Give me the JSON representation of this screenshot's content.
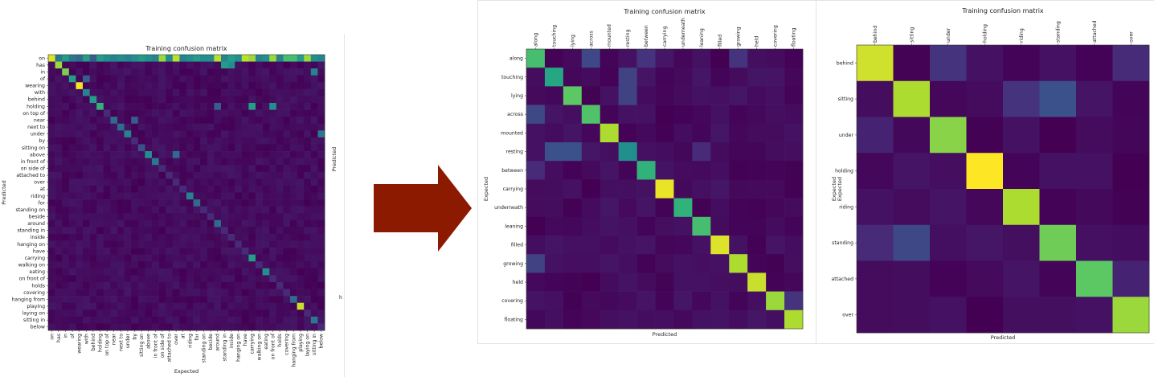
{
  "colors": {
    "arrow": "#8b1a00",
    "colormap": "viridis"
  },
  "chart_data": [
    {
      "type": "heatmap",
      "title": "Training confusion matrix",
      "xlabel": "Expected",
      "ylabel": "Predicted",
      "side_label": "Predicted",
      "edge_text": "h",
      "categories": [
        "on",
        "has",
        "in",
        "of",
        "wearing",
        "with",
        "behind",
        "holding",
        "on top of",
        "near",
        "next to",
        "under",
        "by",
        "sitting on",
        "above",
        "in front of",
        "on side of",
        "attached to",
        "over",
        "at",
        "riding",
        "for",
        "standing on",
        "beside",
        "around",
        "standing in",
        "inside",
        "hanging on",
        "have",
        "carrying",
        "walking on",
        "eating",
        "on front of",
        "holds",
        "covering",
        "hanging from",
        "playing",
        "laying on",
        "sitting in",
        "below"
      ],
      "diagonal": [
        0.95,
        0.85,
        0.8,
        0.55,
        0.98,
        0.45,
        0.55,
        0.65,
        0.12,
        0.35,
        0.35,
        0.45,
        0.12,
        0.25,
        0.5,
        0.4,
        0.12,
        0.12,
        0.12,
        0.12,
        0.45,
        0.35,
        0.12,
        0.12,
        0.35,
        0.12,
        0.12,
        0.12,
        0.12,
        0.55,
        0.12,
        0.5,
        0.12,
        0.12,
        0.12,
        0.35,
        0.92,
        0.12,
        0.4,
        0.12
      ],
      "top_row": [
        0.95,
        0.4,
        0.55,
        0.4,
        0.35,
        0.55,
        0.3,
        0.55,
        0.5,
        0.45,
        0.5,
        0.45,
        0.5,
        0.55,
        0.5,
        0.45,
        0.85,
        0.5,
        0.9,
        0.45,
        0.5,
        0.55,
        0.5,
        0.5,
        0.9,
        0.45,
        0.55,
        0.5,
        0.9,
        0.85,
        0.45,
        0.5,
        0.85,
        0.45,
        0.7,
        0.7,
        0.55,
        0.85,
        0.5,
        0.45
      ],
      "off_diagonal": [
        {
          "row": 7,
          "col": 29,
          "value": 0.55
        },
        {
          "row": 7,
          "col": 32,
          "value": 0.5
        },
        {
          "row": 7,
          "col": 24,
          "value": 0.3
        },
        {
          "row": 1,
          "col": 25,
          "value": 0.55
        },
        {
          "row": 1,
          "col": 26,
          "value": 0.5
        },
        {
          "row": 2,
          "col": 38,
          "value": 0.45
        },
        {
          "row": 14,
          "col": 18,
          "value": 0.35
        },
        {
          "row": 9,
          "col": 12,
          "value": 0.3
        },
        {
          "row": 11,
          "col": 39,
          "value": 0.4
        },
        {
          "row": 29,
          "col": 29,
          "value": 0.55
        },
        {
          "row": 3,
          "col": 5,
          "value": 0.3
        }
      ]
    },
    {
      "type": "heatmap",
      "title": "Training confusion matrix",
      "xlabel": "Predicted",
      "ylabel": "Expected",
      "categories": [
        "along",
        "touching",
        "lying",
        "across",
        "mounted",
        "resting",
        "between",
        "carrying",
        "underneath",
        "leaning",
        "filled",
        "growing",
        "held",
        "covering",
        "floating"
      ],
      "diagonal": [
        0.7,
        0.6,
        0.75,
        0.72,
        0.88,
        0.5,
        0.65,
        0.97,
        0.65,
        0.7,
        0.95,
        0.88,
        0.92,
        0.85,
        0.88
      ],
      "off_diagonal": [
        {
          "row": 0,
          "col": 3,
          "value": 0.22
        },
        {
          "row": 0,
          "col": 6,
          "value": 0.15
        },
        {
          "row": 0,
          "col": 11,
          "value": 0.15
        },
        {
          "row": 1,
          "col": 5,
          "value": 0.2
        },
        {
          "row": 2,
          "col": 5,
          "value": 0.2
        },
        {
          "row": 3,
          "col": 0,
          "value": 0.22
        },
        {
          "row": 5,
          "col": 1,
          "value": 0.25
        },
        {
          "row": 5,
          "col": 2,
          "value": 0.25
        },
        {
          "row": 5,
          "col": 9,
          "value": 0.12
        },
        {
          "row": 6,
          "col": 0,
          "value": 0.12
        },
        {
          "row": 11,
          "col": 0,
          "value": 0.2
        },
        {
          "row": 13,
          "col": 14,
          "value": 0.15
        }
      ]
    },
    {
      "type": "heatmap",
      "title": "Training confusion matrix",
      "xlabel": "Predicted",
      "ylabel": "Expected",
      "ylabel_dup": "Expected",
      "categories": [
        "behind",
        "sitting",
        "under",
        "holding",
        "riding",
        "standing",
        "attached",
        "over"
      ],
      "diagonal": [
        0.93,
        0.88,
        0.82,
        1.0,
        0.88,
        0.78,
        0.75,
        0.85
      ],
      "off_diagonal": [
        {
          "row": 1,
          "col": 5,
          "value": 0.25
        },
        {
          "row": 1,
          "col": 4,
          "value": 0.15
        },
        {
          "row": 5,
          "col": 1,
          "value": 0.22
        },
        {
          "row": 5,
          "col": 0,
          "value": 0.12
        },
        {
          "row": 0,
          "col": 2,
          "value": 0.15
        },
        {
          "row": 0,
          "col": 7,
          "value": 0.12
        },
        {
          "row": 2,
          "col": 0,
          "value": 0.1
        },
        {
          "row": 6,
          "col": 7,
          "value": 0.1
        }
      ]
    }
  ]
}
